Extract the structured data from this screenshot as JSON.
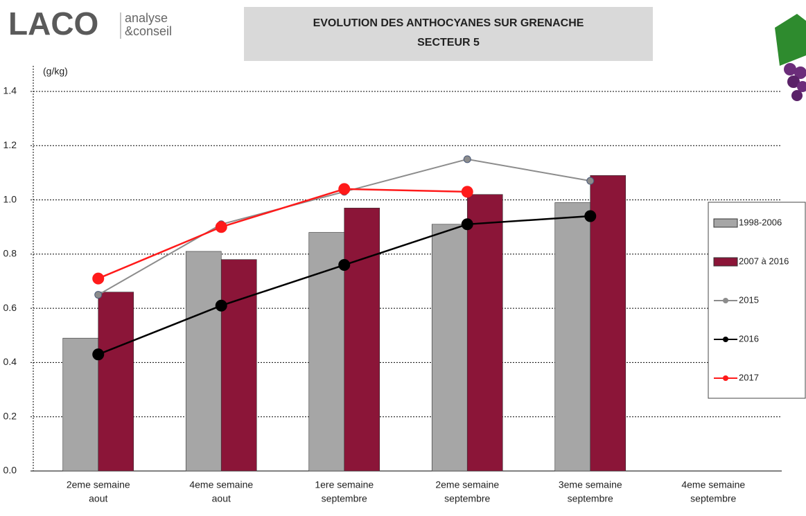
{
  "header": {
    "logo": "LACO",
    "logo_sub": [
      "analyse",
      "&conseil"
    ]
  },
  "chart_data": {
    "type": "bar_line",
    "title": [
      "EVOLUTION DES ANTHOCYANES SUR GRENACHE",
      "SECTEUR 5"
    ],
    "y_label": "(g/kg)",
    "categories": [
      [
        "2eme semaine",
        "aout"
      ],
      [
        "4eme semaine",
        "aout"
      ],
      [
        "1ere semaine",
        "septembre"
      ],
      [
        "2eme semaine",
        "septembre"
      ],
      [
        "3eme semaine",
        "septembre"
      ],
      [
        "4eme semaine",
        "septembre"
      ]
    ],
    "ylim": [
      0,
      1.4
    ],
    "yticks": [
      {
        "value": 0,
        "label": "0.0"
      },
      0.2,
      0.4,
      0.6,
      0.8,
      {
        "value": 1,
        "label": "1.0"
      },
      1.2,
      1.4
    ],
    "grid": true,
    "series": [
      {
        "name": "1998-2006",
        "kind": "bar",
        "color": "#a6a6a6",
        "values": [
          0.49,
          0.81,
          0.88,
          0.91,
          0.99,
          null
        ]
      },
      {
        "name": "2007 à 2016",
        "kind": "bar",
        "color": "#8b1538",
        "values": [
          0.66,
          0.78,
          0.97,
          1.02,
          1.09,
          null
        ]
      },
      {
        "name": "2015",
        "kind": "line",
        "color": "#8c8c8c",
        "values": [
          0.65,
          0.91,
          1.03,
          1.15,
          1.07,
          null
        ]
      },
      {
        "name": "2016",
        "kind": "line",
        "color": "#000000",
        "values": [
          0.43,
          0.61,
          0.76,
          0.91,
          0.94,
          null
        ]
      },
      {
        "name": "2017",
        "kind": "line",
        "color": "#ff1a1a",
        "values": [
          0.71,
          0.9,
          1.04,
          1.03,
          null,
          null
        ]
      }
    ]
  }
}
